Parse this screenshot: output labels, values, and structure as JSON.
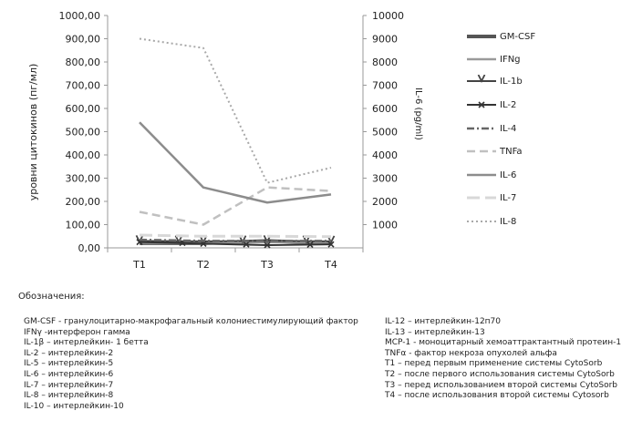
{
  "chart_data": {
    "type": "line",
    "categories": [
      "T1",
      "T2",
      "T3",
      "T4"
    ],
    "ylabel": "уровни цитокинов (пг/мл)",
    "ylabel_right": "IL-6 (pg/ml)",
    "ylim": [
      0,
      1000
    ],
    "ylim_right": [
      0,
      10000
    ],
    "yticks": [
      "0,00",
      "100,00",
      "200,00",
      "300,00",
      "400,00",
      "500,00",
      "600,00",
      "700,00",
      "800,00",
      "900,00",
      "1000,00"
    ],
    "yticks_right": [
      "1000",
      "2000",
      "3000",
      "4000",
      "5000",
      "6000",
      "7000",
      "8000",
      "9000",
      "10000"
    ],
    "series": [
      {
        "name": "GM-CSF",
        "values": [
          20,
          20,
          30,
          20
        ],
        "color": "#555555",
        "style": "solid-thick",
        "axis": "left"
      },
      {
        "name": "IFNg",
        "values": [
          22,
          20,
          25,
          22
        ],
        "color": "#9a9a9a",
        "style": "solid",
        "axis": "left"
      },
      {
        "name": "IL-1b",
        "values": [
          30,
          28,
          30,
          28
        ],
        "color": "#444444",
        "style": "marker-v",
        "axis": "left"
      },
      {
        "name": "IL-2",
        "values": [
          25,
          18,
          12,
          15
        ],
        "color": "#333333",
        "style": "marker-x",
        "axis": "left"
      },
      {
        "name": "IL-4",
        "values": [
          35,
          30,
          30,
          30
        ],
        "color": "#666666",
        "style": "dash-dot",
        "axis": "left"
      },
      {
        "name": "TNFa",
        "values": [
          155,
          100,
          260,
          245
        ],
        "color": "#c0c0c0",
        "style": "dash",
        "axis": "left"
      },
      {
        "name": "IL-6",
        "values": [
          5400,
          2600,
          1950,
          2300
        ],
        "color": "#8c8c8c",
        "style": "solid",
        "axis": "right"
      },
      {
        "name": "IL-7",
        "values": [
          55,
          50,
          50,
          48
        ],
        "color": "#d8d8d8",
        "style": "long-dash",
        "axis": "left"
      },
      {
        "name": "IL-8",
        "values": [
          900,
          860,
          280,
          345
        ],
        "color": "#a8a8a8",
        "style": "dotted",
        "axis": "left"
      }
    ]
  },
  "notes": {
    "title": "Обозначения:",
    "left": [
      "GM-CSF - гранулоцитарно-макрофагальный колониестимулирующий фактор",
      "IFNγ -интерферон гамма",
      "IL-1β – интерлейкин- 1 бетта",
      "IL-2 – интерлейкин-2",
      "IL-5 – интерлейкин-5",
      "IL-6 – интерлейкин-6",
      "IL-7 – интерлейкин-7",
      "IL-8 – интерлейкин-8",
      "IL-10 – интерлейкин-10"
    ],
    "right": [
      "IL-12 – интерлейкин-12п70",
      "IL-13 – интерлейкин-13",
      "MCP-1 - моноцитарный хемоаттрактантный протеин-1",
      "TNFα - фактор некроза опухолей альфа",
      "T1 – перед первым применение системы CytoSorb",
      "T2 – после первого использования системы CytoSorb",
      "T3 – перед использованием второй системы CytoSorb",
      "T4 – после использования второй системы Cytosorb"
    ]
  }
}
